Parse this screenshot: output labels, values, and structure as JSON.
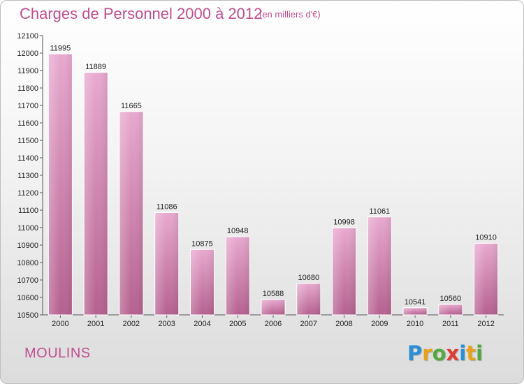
{
  "header": {
    "title": "Charges de Personnel 2000 à 2012",
    "subtitle": "(en milliers d'€)"
  },
  "footer": {
    "commune": "MOULINS",
    "logo_letters": [
      {
        "ch": "P",
        "color": "#2a8fd6"
      },
      {
        "ch": "r",
        "color": "#e8a21a"
      },
      {
        "ch": "o",
        "color": "#53a93f"
      },
      {
        "ch": "x",
        "color": "#e03c31"
      },
      {
        "ch": "i",
        "color": "#2a8fd6"
      },
      {
        "ch": "t",
        "color": "#e8a21a"
      },
      {
        "ch": "i",
        "color": "#53a93f"
      }
    ]
  },
  "chart_data": {
    "type": "bar",
    "title": "Charges de Personnel 2000 à 2012",
    "subtitle": "(en milliers d'€)",
    "categories": [
      "2000",
      "2001",
      "2002",
      "2003",
      "2004",
      "2005",
      "2006",
      "2007",
      "2008",
      "2009",
      "2010",
      "2011",
      "2012"
    ],
    "values": [
      11995,
      11889,
      11665,
      11086,
      10875,
      10948,
      10588,
      10680,
      10998,
      11061,
      10541,
      10560,
      10910
    ],
    "ylim": [
      10500,
      12100
    ],
    "yticks": [
      10500,
      10600,
      10700,
      10800,
      10900,
      11000,
      11100,
      11200,
      11300,
      11400,
      11500,
      11600,
      11700,
      11800,
      11900,
      12000,
      12100
    ],
    "grid": false,
    "bar_color": "#d98bbb",
    "xlabel": "",
    "ylabel": ""
  }
}
